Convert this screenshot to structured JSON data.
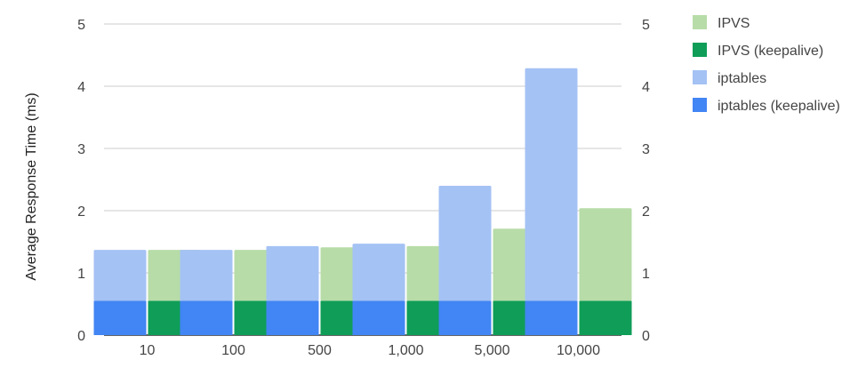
{
  "chart_data": {
    "type": "bar",
    "title": "",
    "xlabel": "",
    "ylabel": "Average Response Time (ms)",
    "ylim": [
      0,
      5
    ],
    "yticks": [
      "0",
      "1",
      "2",
      "3",
      "4",
      "5"
    ],
    "grid": true,
    "legend_position": "right",
    "categories": [
      "10",
      "100",
      "500",
      "1,000",
      "5,000",
      "10,000"
    ],
    "series": [
      {
        "name": "IPVS",
        "color": "#b7dca8",
        "values": [
          1.37,
          1.37,
          1.41,
          1.43,
          1.71,
          2.04
        ]
      },
      {
        "name": "IPVS (keepalive)",
        "color": "#0f9d58",
        "values": [
          0.55,
          0.55,
          0.55,
          0.55,
          0.55,
          0.55
        ]
      },
      {
        "name": "iptables",
        "color": "#a4c2f4",
        "values": [
          1.37,
          1.37,
          1.43,
          1.47,
          2.4,
          4.29
        ]
      },
      {
        "name": "iptables (keepalive)",
        "color": "#4285f4",
        "values": [
          0.55,
          0.55,
          0.55,
          0.55,
          0.55,
          0.55
        ]
      }
    ]
  }
}
